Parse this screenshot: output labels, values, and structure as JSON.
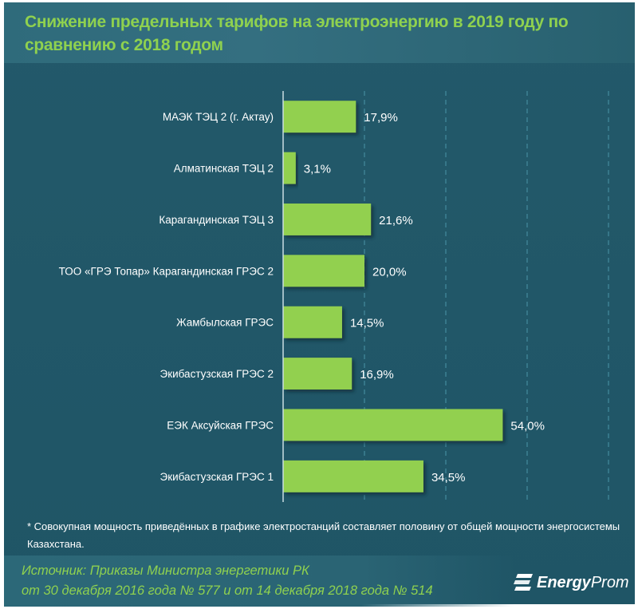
{
  "header": {
    "title": "Снижение предельных тарифов на электроэнергию в 2019 году по сравнению с 2018 годом"
  },
  "chart_data": {
    "type": "bar",
    "orientation": "horizontal",
    "title": "Снижение предельных тарифов на электроэнергию в 2019 году по сравнению с 2018 годом",
    "categories": [
      "МАЭК ТЭЦ 2 (г. Актау)",
      "Алматинская ТЭЦ 2",
      "Карагандинская ТЭЦ 3",
      "ТОО «ГРЭ Топар» Карагандинская ГРЭС 2",
      "Жамбылская ГРЭС",
      "Экибастузская ГРЭС 2",
      "ЕЭК Аксуйская ГРЭС",
      "Экибастузская ГРЭС 1"
    ],
    "values": [
      17.9,
      3.1,
      21.6,
      20.0,
      14.5,
      16.9,
      54.0,
      34.5
    ],
    "value_labels": [
      "17,9%",
      "3,1%",
      "21,6%",
      "20,0%",
      "14,5%",
      "16,9%",
      "54,0%",
      "34,5%"
    ],
    "xlabel": "",
    "ylabel": "",
    "xlim": [
      0,
      80
    ],
    "gridlines": [
      20,
      40,
      60,
      80
    ],
    "grid": true,
    "bar_color": "#92d050",
    "background_color": "#23596a"
  },
  "footnote": "* Совокупная мощность приведённых в графике электростанций составляет половину от общей мощности энергосистемы Казахстана.",
  "source": {
    "line1": "Источник: Приказы Министра энергетики РК",
    "line2": "от 30 декабря 2016 года № 577 и от 14 декабря 2018 года № 514"
  },
  "logo": {
    "bold": "Energy",
    "light": "Prom"
  }
}
